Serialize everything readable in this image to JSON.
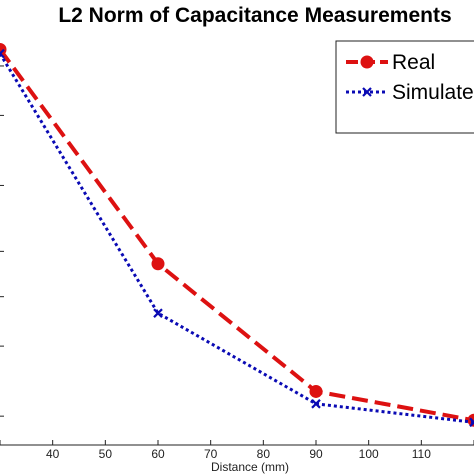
{
  "chart_data": {
    "type": "line",
    "title": "L2 Norm of Capacitance Measurements",
    "xlabel": "Distance (mm)",
    "ylabel": "",
    "xlim": [
      30,
      120
    ],
    "ylim": [
      0,
      1
    ],
    "x_ticks": [
      30,
      40,
      50,
      60,
      70,
      80,
      90,
      100,
      110,
      120
    ],
    "x_tick_labels": [
      "",
      "40",
      "50",
      "60",
      "70",
      "80",
      "90",
      "100",
      "110",
      ""
    ],
    "grid": false,
    "legend_position": "top-right",
    "series": [
      {
        "name": "Real",
        "color": "#dd1111",
        "line_style": "dashed",
        "marker": "circle",
        "x": [
          30,
          60,
          90,
          120
        ],
        "y": [
          0.96,
          0.44,
          0.13,
          0.06
        ]
      },
      {
        "name": "Simulated",
        "color": "#0a0ab4",
        "line_style": "dotted",
        "marker": "x",
        "x": [
          30,
          60,
          90,
          120
        ],
        "y": [
          0.95,
          0.32,
          0.1,
          0.055
        ]
      }
    ]
  }
}
